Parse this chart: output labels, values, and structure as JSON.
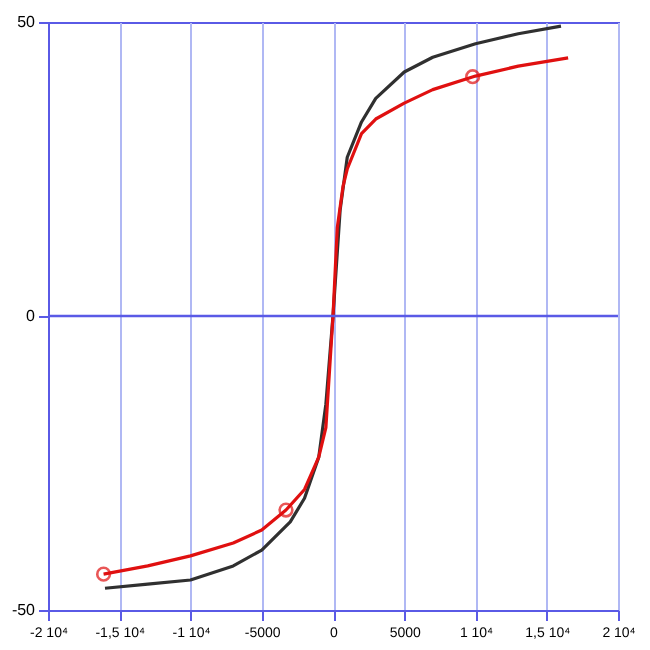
{
  "chart_data": {
    "type": "line",
    "xlim": [
      -20000,
      20000
    ],
    "xticks": [
      {
        "value": -20000,
        "label": "-2 10⁴"
      },
      {
        "value": -15000,
        "label": "-1,5 10⁴"
      },
      {
        "value": -10000,
        "label": "-1 10⁴"
      },
      -5000,
      0,
      5000,
      {
        "value": 10000,
        "label": "1 10⁴"
      },
      {
        "value": 15000,
        "label": "1,5 10⁴"
      },
      {
        "value": 20000,
        "label": "2 10⁴"
      }
    ],
    "ylim": [
      -50,
      50
    ],
    "yticks": [
      -50,
      0,
      50
    ],
    "grid": "x",
    "line_style": "solid",
    "ref_lines": [
      {
        "axis": "y",
        "value": 0,
        "color": "#5a5ae6"
      }
    ],
    "series": [
      {
        "color": "#303030",
        "marker": "none",
        "x": [
          -16000,
          -13000,
          -10000,
          -7000,
          -5000,
          -3000,
          -2000,
          -1000,
          -500,
          0,
          500,
          1000,
          2000,
          3000,
          5000,
          7000,
          10000,
          13000,
          16000
        ],
        "values": [
          -46.3,
          -45.6,
          -44.9,
          -42.5,
          -39.8,
          -35,
          -31,
          -24,
          -15,
          0,
          18,
          27,
          33,
          37,
          41.5,
          44,
          46.3,
          48,
          49.3
        ]
      },
      {
        "color": "#e01010",
        "marker": "none",
        "x": [
          -16100,
          -13000,
          -10000,
          -7000,
          -5000,
          -3300,
          -2000,
          -1000,
          -500,
          0,
          300,
          700,
          1000,
          2000,
          3000,
          5000,
          7000,
          10000,
          13000,
          16500
        ],
        "values": [
          -43.9,
          -42.5,
          -40.8,
          -38.6,
          -36.4,
          -33,
          -29.5,
          -24,
          -19,
          0,
          15,
          22,
          25,
          31,
          33.5,
          36.2,
          38.5,
          40.8,
          42.5,
          43.9
        ]
      },
      {
        "type": "scatter",
        "color": "#e01010",
        "marker": "circle",
        "x": [
          -16100,
          -3300,
          9800
        ],
        "values": [
          -43.9,
          -33,
          40.7
        ]
      }
    ]
  }
}
